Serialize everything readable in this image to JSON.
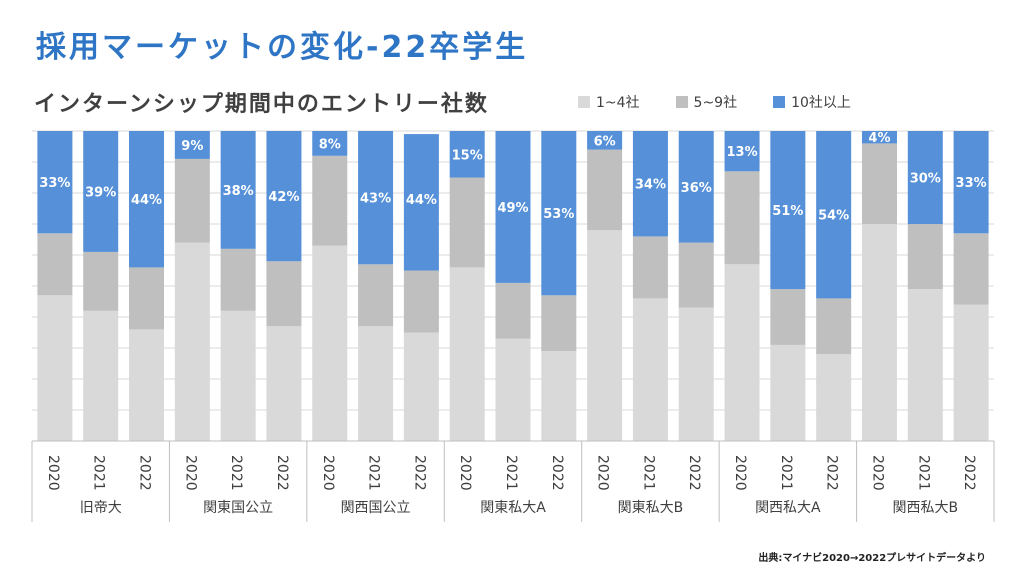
{
  "slide_title": "採用マーケットの変化-22卒学生",
  "source": "出典:マイナビ2020→2022プレサイトデータより",
  "colors": {
    "title": "#2e75c5",
    "s1": "#d9d9d9",
    "s2": "#bfbfbf",
    "s3": "#5590d8"
  },
  "chart_data": {
    "type": "bar",
    "stacked": true,
    "percent_stacked": true,
    "title": "インターンシップ期間中のエントリー社数",
    "legend": [
      "1~4社",
      "5~9社",
      "10社以上"
    ],
    "legend_position": "top-right",
    "ylim": [
      0,
      100
    ],
    "grid": true,
    "groups": [
      {
        "name": "旧帝大",
        "years": [
          "2020",
          "2021",
          "2022"
        ]
      },
      {
        "name": "関東国公立",
        "years": [
          "2020",
          "2021",
          "2022"
        ]
      },
      {
        "name": "関西国公立",
        "years": [
          "2020",
          "2021",
          "2022"
        ]
      },
      {
        "name": "関東私大A",
        "years": [
          "2020",
          "2021",
          "2022"
        ]
      },
      {
        "name": "関東私大B",
        "years": [
          "2020",
          "2021",
          "2022"
        ]
      },
      {
        "name": "関西私大A",
        "years": [
          "2020",
          "2021",
          "2022"
        ]
      },
      {
        "name": "関西私大B",
        "years": [
          "2020",
          "2021",
          "2022"
        ]
      }
    ],
    "series": [
      {
        "name": "1~4社",
        "values": [
          47,
          42,
          36,
          64,
          42,
          37,
          63,
          37,
          35,
          56,
          33,
          29,
          68,
          46,
          43,
          57,
          31,
          28,
          70,
          49,
          44
        ]
      },
      {
        "name": "5~9社",
        "values": [
          20,
          19,
          20,
          27,
          20,
          21,
          29,
          20,
          20,
          29,
          18,
          18,
          26,
          20,
          21,
          30,
          18,
          18,
          26,
          21,
          23
        ]
      },
      {
        "name": "10社以上",
        "values": [
          33,
          39,
          44,
          9,
          38,
          42,
          8,
          43,
          44,
          15,
          49,
          53,
          6,
          34,
          36,
          13,
          51,
          54,
          4,
          30,
          33
        ]
      }
    ],
    "data_labels": [
      "33%",
      "39%",
      "44%",
      "9%",
      "38%",
      "42%",
      "8%",
      "43%",
      "44%",
      "15%",
      "49%",
      "53%",
      "6%",
      "34%",
      "36%",
      "13%",
      "51%",
      "54%",
      "4%",
      "30%",
      "33%"
    ]
  }
}
